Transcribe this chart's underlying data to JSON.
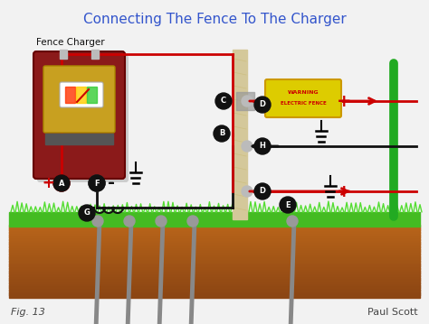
{
  "title": "Connecting The Fence To The Charger",
  "title_color": "#3355cc",
  "title_fontsize": 11,
  "bg_color": "#f2f2f2",
  "fig_label": "Fig. 13",
  "author": "Paul Scott",
  "charger_label": "Fence Charger",
  "warning_text": "WARNING\nELECTRIC FENCE",
  "fence_post_color": "#d4c89a",
  "green_post_color": "#22aa22",
  "dirt_top_color": "#b8651a",
  "dirt_bottom_color": "#8b4513",
  "grass_color": "#44bb22",
  "charger_body_color": "#8b1a1a",
  "charger_panel_color": "#c8a020",
  "wire_red_color": "#cc0000",
  "wire_black_color": "#111111",
  "stake_color": "#888888",
  "insulator_color": "#aaaaaa",
  "ground_color": "#000000"
}
